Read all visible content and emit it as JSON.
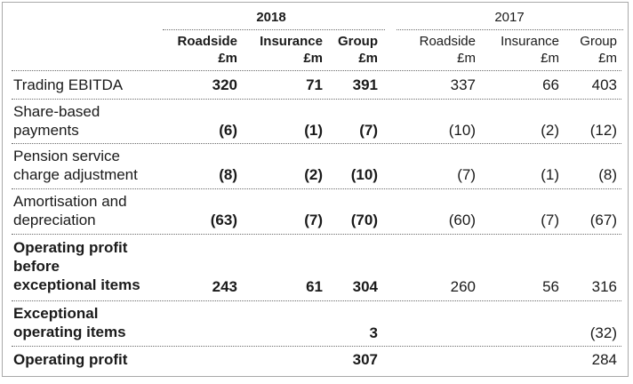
{
  "header": {
    "year_current": "2018",
    "year_prior": "2017",
    "columns_current": [
      {
        "name": "Roadside",
        "unit": "£m"
      },
      {
        "name": "Insurance",
        "unit": "£m"
      },
      {
        "name": "Group",
        "unit": "£m"
      }
    ],
    "columns_prior": [
      {
        "name": "Roadside",
        "unit": "£m"
      },
      {
        "name": "Insurance",
        "unit": "£m"
      },
      {
        "name": "Group",
        "unit": "£m"
      }
    ]
  },
  "rows": [
    {
      "label": "Trading EBITDA",
      "c": [
        "320",
        "71",
        "391"
      ],
      "p": [
        "337",
        "66",
        "403"
      ]
    },
    {
      "label": "Share-based payments",
      "c": [
        "(6)",
        "(1)",
        "(7)"
      ],
      "p": [
        "(10)",
        "(2)",
        "(12)"
      ]
    },
    {
      "label": "Pension service charge adjustment",
      "c": [
        "(8)",
        "(2)",
        "(10)"
      ],
      "p": [
        "(7)",
        "(1)",
        "(8)"
      ]
    },
    {
      "label": "Amortisation and depreciation",
      "c": [
        "(63)",
        "(7)",
        "(70)"
      ],
      "p": [
        "(60)",
        "(7)",
        "(67)"
      ]
    },
    {
      "label": "Operating profit before exceptional items",
      "c": [
        "243",
        "61",
        "304"
      ],
      "p": [
        "260",
        "56",
        "316"
      ]
    },
    {
      "label": "Exceptional operating items",
      "c": [
        "",
        "",
        "3"
      ],
      "p": [
        "",
        "",
        "(32)"
      ]
    },
    {
      "label": "Operating profit",
      "c": [
        "",
        "",
        "307"
      ],
      "p": [
        "",
        "",
        "284"
      ]
    }
  ]
}
